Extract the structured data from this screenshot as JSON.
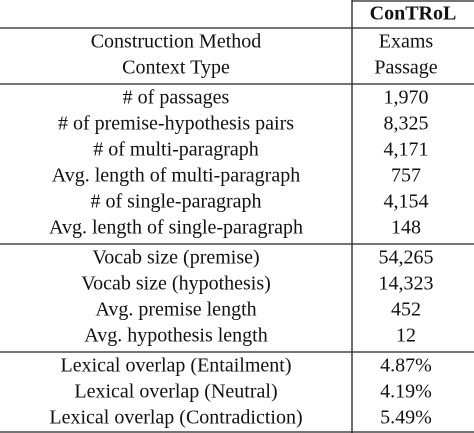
{
  "table": {
    "header": "ConTRoL",
    "groups": [
      [
        [
          "Construction Method",
          "Exams"
        ],
        [
          "Context Type",
          "Passage"
        ]
      ],
      [
        [
          "# of passages",
          "1,970"
        ],
        [
          "# of premise-hypothesis pairs",
          "8,325"
        ],
        [
          "# of multi-paragraph",
          "4,171"
        ],
        [
          "Avg. length of multi-paragraph",
          "757"
        ],
        [
          "# of single-paragraph",
          "4,154"
        ],
        [
          "Avg. length of single-paragraph",
          "148"
        ]
      ],
      [
        [
          "Vocab size (premise)",
          "54,265"
        ],
        [
          "Vocab size (hypothesis)",
          "14,323"
        ],
        [
          "Avg. premise length",
          "452"
        ],
        [
          "Avg. hypothesis length",
          "12"
        ]
      ],
      [
        [
          "Lexical overlap (Entailment)",
          "4.87%"
        ],
        [
          "Lexical overlap (Neutral)",
          "4.19%"
        ],
        [
          "Lexical overlap (Contradiction)",
          "5.49%"
        ]
      ]
    ]
  }
}
